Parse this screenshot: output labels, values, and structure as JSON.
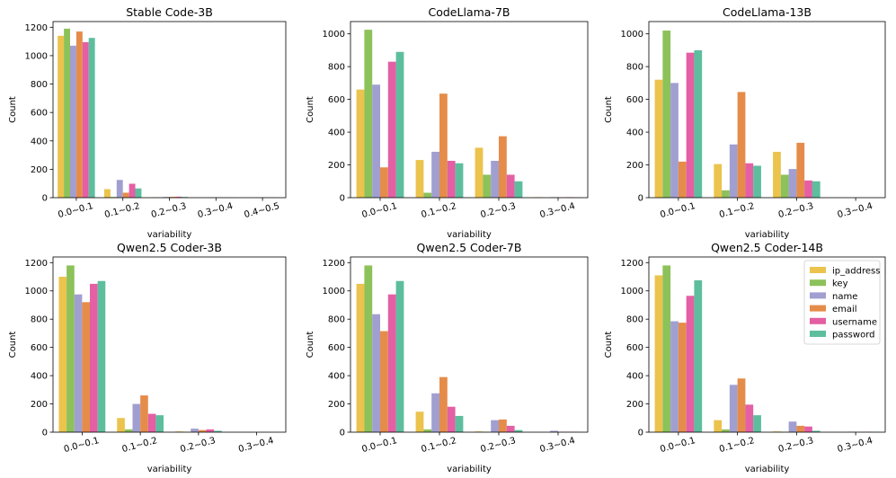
{
  "chart_data": [
    {
      "type": "bar",
      "title": "Stable Code-3B",
      "xlabel": "variability",
      "ylabel": "Count",
      "ylim": [
        0,
        1240
      ],
      "yticks": [
        0,
        200,
        400,
        600,
        800,
        1000,
        1200
      ],
      "categories": [
        "0.0~0.1",
        "0.1~0.2",
        "0.2~0.3",
        "0.3~0.4",
        "0.4~0.5"
      ],
      "series": [
        {
          "name": "ip_address",
          "values": [
            1140,
            60,
            3,
            0,
            0
          ]
        },
        {
          "name": "key",
          "values": [
            1190,
            5,
            2,
            0,
            0
          ]
        },
        {
          "name": "name",
          "values": [
            1070,
            125,
            5,
            2,
            1
          ]
        },
        {
          "name": "email",
          "values": [
            1170,
            35,
            6,
            2,
            1
          ]
        },
        {
          "name": "username",
          "values": [
            1095,
            98,
            7,
            1,
            1
          ]
        },
        {
          "name": "password",
          "values": [
            1125,
            65,
            5,
            1,
            0
          ]
        }
      ],
      "legend": false
    },
    {
      "type": "bar",
      "title": "CodeLlama-7B",
      "xlabel": "variability",
      "ylabel": "Count",
      "ylim": [
        0,
        1075
      ],
      "yticks": [
        0,
        200,
        400,
        600,
        800,
        1000
      ],
      "categories": [
        "0.0~0.1",
        "0.1~0.2",
        "0.2~0.3",
        "0.3~0.4"
      ],
      "series": [
        {
          "name": "ip_address",
          "values": [
            660,
            230,
            305,
            3
          ]
        },
        {
          "name": "key",
          "values": [
            1025,
            30,
            140,
            0
          ]
        },
        {
          "name": "name",
          "values": [
            690,
            280,
            225,
            3
          ]
        },
        {
          "name": "email",
          "values": [
            185,
            635,
            375,
            2
          ]
        },
        {
          "name": "username",
          "values": [
            830,
            225,
            140,
            3
          ]
        },
        {
          "name": "password",
          "values": [
            890,
            210,
            100,
            2
          ]
        }
      ],
      "legend": false
    },
    {
      "type": "bar",
      "title": "CodeLlama-13B",
      "xlabel": "variability",
      "ylabel": "Count",
      "ylim": [
        0,
        1075
      ],
      "yticks": [
        0,
        200,
        400,
        600,
        800,
        1000
      ],
      "categories": [
        "0.0~0.1",
        "0.1~0.2",
        "0.2~0.3",
        "0.3~0.4"
      ],
      "series": [
        {
          "name": "ip_address",
          "values": [
            720,
            205,
            280,
            0
          ]
        },
        {
          "name": "key",
          "values": [
            1020,
            45,
            140,
            0
          ]
        },
        {
          "name": "name",
          "values": [
            700,
            325,
            175,
            0
          ]
        },
        {
          "name": "email",
          "values": [
            220,
            645,
            335,
            0
          ]
        },
        {
          "name": "username",
          "values": [
            885,
            210,
            105,
            0
          ]
        },
        {
          "name": "password",
          "values": [
            900,
            195,
            100,
            0
          ]
        }
      ],
      "legend": false
    },
    {
      "type": "bar",
      "title": "Qwen2.5 Coder-3B",
      "xlabel": "variability",
      "ylabel": "Count",
      "ylim": [
        0,
        1240
      ],
      "yticks": [
        0,
        200,
        400,
        600,
        800,
        1000,
        1200
      ],
      "categories": [
        "0.0~0.1",
        "0.1~0.2",
        "0.2~0.3",
        "0.3~0.4"
      ],
      "series": [
        {
          "name": "ip_address",
          "values": [
            1100,
            100,
            5,
            0
          ]
        },
        {
          "name": "key",
          "values": [
            1180,
            20,
            2,
            0
          ]
        },
        {
          "name": "name",
          "values": [
            975,
            200,
            25,
            0
          ]
        },
        {
          "name": "email",
          "values": [
            920,
            260,
            15,
            0
          ]
        },
        {
          "name": "username",
          "values": [
            1050,
            130,
            20,
            0
          ]
        },
        {
          "name": "password",
          "values": [
            1070,
            120,
            10,
            0
          ]
        }
      ],
      "legend": false
    },
    {
      "type": "bar",
      "title": "Qwen2.5 Coder-7B",
      "xlabel": "variability",
      "ylabel": "Count",
      "ylim": [
        0,
        1240
      ],
      "yticks": [
        0,
        200,
        400,
        600,
        800,
        1000,
        1200
      ],
      "categories": [
        "0.0~0.1",
        "0.1~0.2",
        "0.2~0.3",
        "0.3~0.4"
      ],
      "series": [
        {
          "name": "ip_address",
          "values": [
            1050,
            145,
            5,
            0
          ]
        },
        {
          "name": "key",
          "values": [
            1180,
            20,
            2,
            0
          ]
        },
        {
          "name": "name",
          "values": [
            835,
            275,
            85,
            10
          ]
        },
        {
          "name": "email",
          "values": [
            715,
            390,
            90,
            3
          ]
        },
        {
          "name": "username",
          "values": [
            975,
            180,
            45,
            3
          ]
        },
        {
          "name": "password",
          "values": [
            1070,
            115,
            15,
            2
          ]
        }
      ],
      "legend": false
    },
    {
      "type": "bar",
      "title": "Qwen2.5 Coder-14B",
      "xlabel": "variability",
      "ylabel": "Count",
      "ylim": [
        0,
        1240
      ],
      "yticks": [
        0,
        200,
        400,
        600,
        800,
        1000,
        1200
      ],
      "categories": [
        "0.0~0.1",
        "0.1~0.2",
        "0.2~0.3",
        "0.3~0.4"
      ],
      "series": [
        {
          "name": "ip_address",
          "values": [
            1110,
            85,
            5,
            0
          ]
        },
        {
          "name": "key",
          "values": [
            1180,
            20,
            2,
            0
          ]
        },
        {
          "name": "name",
          "values": [
            785,
            335,
            75,
            3
          ]
        },
        {
          "name": "email",
          "values": [
            775,
            380,
            45,
            2
          ]
        },
        {
          "name": "username",
          "values": [
            965,
            195,
            40,
            3
          ]
        },
        {
          "name": "password",
          "values": [
            1075,
            120,
            10,
            2
          ]
        }
      ],
      "legend": true,
      "legend_position": "top-right"
    }
  ],
  "colors": {
    "ip_address": "#EBC34D",
    "key": "#8DC15A",
    "name": "#A19FD0",
    "email": "#E58C4A",
    "username": "#E45FA4",
    "password": "#5DBE9E"
  }
}
